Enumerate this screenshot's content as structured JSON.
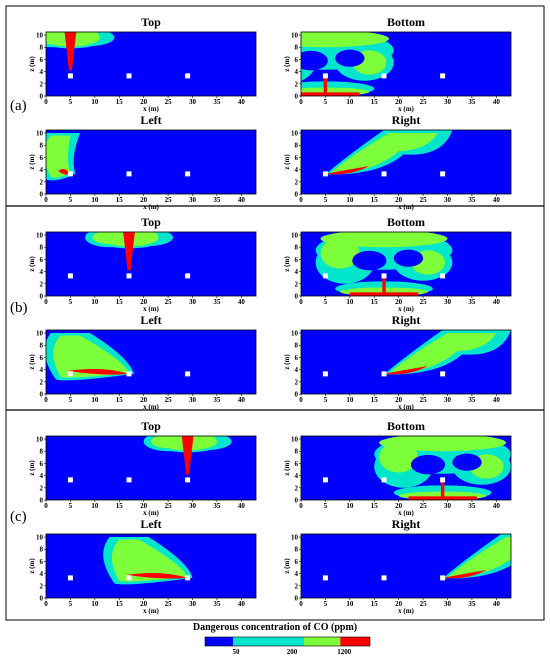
{
  "figure": {
    "colorbar_title": "Dangerous concentration of CO (ppm)",
    "colorbar_ticks": [
      "50",
      "200",
      "1200"
    ],
    "colorbar_colors": [
      "#0000ff",
      "#00e5cc",
      "#7dff3a",
      "#ff0000"
    ]
  },
  "axes": {
    "xlabel": "x (m)",
    "ylabel": "z (m)"
  },
  "chart_data": {
    "type": "heatmap",
    "quantity": "Dangerous concentration of CO (ppm)",
    "levels": [
      {
        "range": "below 50",
        "color": "#0000ff"
      },
      {
        "range": "50-200",
        "color": "#00e5cc"
      },
      {
        "range": "200-1200",
        "color": "#7dff3a"
      },
      {
        "range": "above 1200",
        "color": "#ff0000"
      }
    ],
    "xlim": [
      0,
      43
    ],
    "ylim": [
      0,
      10.5
    ],
    "xticks": [
      "0",
      "5",
      "10",
      "15",
      "20",
      "25",
      "30",
      "35",
      "40"
    ],
    "yticks": [
      "0",
      "2",
      "4",
      "6",
      "8",
      "10"
    ],
    "markers_x": [
      5,
      17,
      29
    ],
    "markers_z": 3.3,
    "groups": [
      {
        "label": "(a)",
        "source_x": 5,
        "panels": [
          {
            "title": "Top",
            "vent": "top"
          },
          {
            "title": "Bottom",
            "vent": "bottom"
          },
          {
            "title": "Left",
            "vent": "left"
          },
          {
            "title": "Right",
            "vent": "right"
          }
        ]
      },
      {
        "label": "(b)",
        "source_x": 17,
        "panels": [
          {
            "title": "Top",
            "vent": "top"
          },
          {
            "title": "Bottom",
            "vent": "bottom"
          },
          {
            "title": "Left",
            "vent": "left"
          },
          {
            "title": "Right",
            "vent": "right"
          }
        ]
      },
      {
        "label": "(c)",
        "source_x": 29,
        "panels": [
          {
            "title": "Top",
            "vent": "top"
          },
          {
            "title": "Bottom",
            "vent": "bottom"
          },
          {
            "title": "Left",
            "vent": "left"
          },
          {
            "title": "Right",
            "vent": "right"
          }
        ]
      }
    ]
  }
}
